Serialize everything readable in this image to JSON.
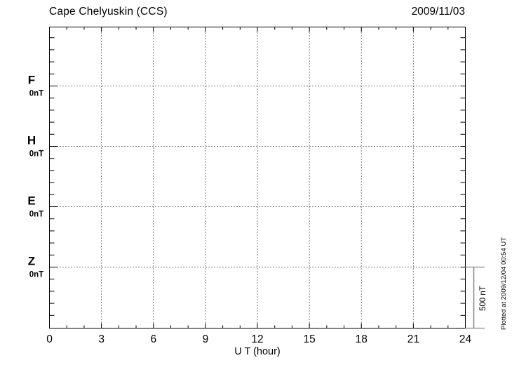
{
  "header": {
    "title": "Cape Chelyuskin (CCS)",
    "date": "2009/11/03"
  },
  "chart_data": {
    "type": "line",
    "title": "Cape Chelyuskin (CCS)",
    "date_label": "2009/11/03",
    "xlabel": "U T (hour)",
    "xlim": [
      0,
      24
    ],
    "x_major_ticks": [
      0,
      3,
      6,
      9,
      12,
      15,
      18,
      21,
      24
    ],
    "x_minor_tick_step_hours": 1,
    "y_tick_step_nT": 100,
    "channel_offset_nT": 500,
    "channels": [
      {
        "label": "F",
        "baseline_label": "0nT",
        "color": "#FFAA00"
      },
      {
        "label": "H",
        "baseline_label": "0nT",
        "color": "#00DD00"
      },
      {
        "label": "E",
        "baseline_label": "0nT",
        "color": "#1414E6"
      },
      {
        "label": "Z",
        "baseline_label": "0nT",
        "color": "#EE0000"
      }
    ],
    "series": [
      {
        "name": "F",
        "x": [],
        "y": []
      },
      {
        "name": "H",
        "x": [],
        "y": []
      },
      {
        "name": "E",
        "x": [],
        "y": []
      },
      {
        "name": "Z",
        "x": [],
        "y": []
      }
    ],
    "data_traces_visible": false,
    "scale_bar_label": "500 nT",
    "plotted_at_note": "Plotted at 2009/12/04 00:54 UT",
    "grid": {
      "vertical_every_hours": 3,
      "horizontal_at_channel_baselines": true,
      "style": "dotted"
    },
    "legend_position": "left-margin channel labels",
    "axis_color": "#000000",
    "scale_bar_color": "#888888"
  }
}
